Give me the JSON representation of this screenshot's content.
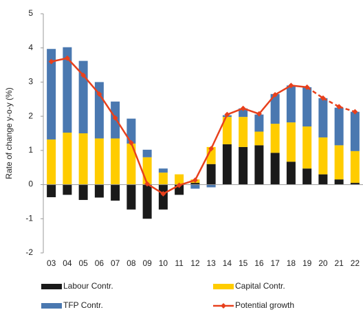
{
  "chart_data": {
    "type": "bar",
    "stacked": true,
    "ylabel": "Rate of change y-o-y (%)",
    "categories": [
      "03",
      "04",
      "05",
      "06",
      "07",
      "08",
      "09",
      "10",
      "11",
      "12",
      "13",
      "14",
      "15",
      "16",
      "17",
      "18",
      "19",
      "20",
      "21",
      "22"
    ],
    "ylim": [
      -2,
      5
    ],
    "yticks": [
      -2,
      -1,
      0,
      1,
      2,
      3,
      4,
      5
    ],
    "series": [
      {
        "name": "Labour Contr.",
        "color": "#1a1a1a",
        "values": [
          -0.37,
          -0.3,
          -0.45,
          -0.38,
          -0.47,
          -0.73,
          -1.0,
          -0.73,
          -0.3,
          0.05,
          0.6,
          1.18,
          1.1,
          1.15,
          0.93,
          0.67,
          0.47,
          0.3,
          0.15,
          0.05
        ]
      },
      {
        "name": "Capital Contr.",
        "color": "#ffcc00",
        "values": [
          1.32,
          1.52,
          1.5,
          1.35,
          1.35,
          1.2,
          0.8,
          0.35,
          0.3,
          0.1,
          0.5,
          0.8,
          0.88,
          0.4,
          0.85,
          1.15,
          1.23,
          1.08,
          1.0,
          0.93
        ]
      },
      {
        "name": "TFP Contr.",
        "color": "#4a78b0",
        "values": [
          2.65,
          2.5,
          2.12,
          1.65,
          1.08,
          0.73,
          0.22,
          0.12,
          0,
          -0.12,
          -0.08,
          0.05,
          0.25,
          0.5,
          0.87,
          1.08,
          1.15,
          1.15,
          1.1,
          1.15
        ]
      },
      {
        "name": "Potential growth",
        "type": "line",
        "color": "#e8401c",
        "forecast_from": "19",
        "values": [
          3.6,
          3.7,
          3.2,
          2.65,
          1.95,
          1.22,
          0.02,
          -0.27,
          -0.02,
          0.13,
          1.05,
          2.05,
          2.23,
          2.07,
          2.63,
          2.9,
          2.85,
          2.53,
          2.28,
          2.13
        ]
      }
    ]
  }
}
